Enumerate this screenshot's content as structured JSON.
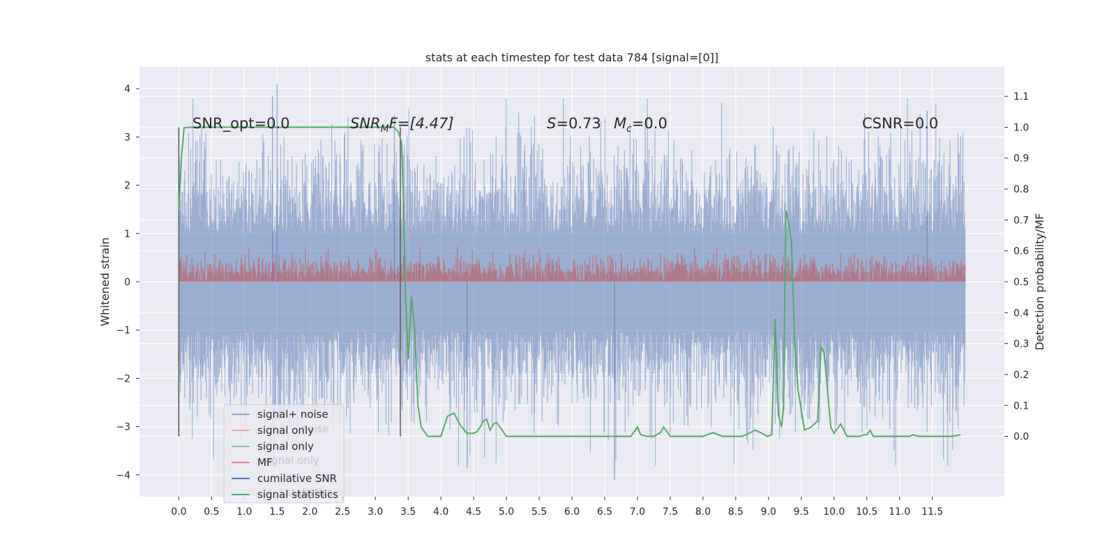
{
  "chart_data": {
    "type": "line",
    "title": "stats at each timestep for test data 784 [signal=[0]]",
    "ylabel": "Whitened strain",
    "y2label": "Detection probability/MF",
    "xlim": [
      -0.6,
      12.6
    ],
    "ylim": [
      -4.45,
      4.45
    ],
    "y2lim": [
      -0.195,
      1.195
    ],
    "x_ticks": [
      "0.0",
      "0.5",
      "1.0",
      "1.5",
      "2.0",
      "2.5",
      "3.0",
      "3.5",
      "4.0",
      "4.5",
      "5.0",
      "5.5",
      "6.0",
      "6.5",
      "7.0",
      "7.5",
      "8.0",
      "8.5",
      "9.0",
      "9.5",
      "10.0",
      "10.5",
      "11.0",
      "11.5"
    ],
    "y_ticks": [
      "4",
      "3",
      "2",
      "1",
      "0",
      "−1",
      "−2",
      "−3",
      "−4"
    ],
    "y2_ticks": [
      "1.1",
      "1.0",
      "0.9",
      "0.8",
      "0.7",
      "0.6",
      "0.5",
      "0.4",
      "0.3",
      "0.2",
      "0.1",
      "0.0"
    ],
    "annotations": {
      "snr_opt": "SNR_opt=0.0",
      "snr_mf_sym": "SNR",
      "snr_mf_sub": "M",
      "snr_mf_rest": "F=[4.47]",
      "s_sym": "S",
      "s_val": "=0.73",
      "mc_sym": "M",
      "mc_sub": "c",
      "mc_val": "=0.0",
      "csnr": "CSNR=0.0"
    },
    "legend": [
      "signal+ noise",
      "signal only",
      "signal only",
      "MF",
      "cumilative SNR",
      "signal statistics"
    ],
    "legend_ghost": [
      "noise",
      "signal only",
      "statistics"
    ],
    "legend_placement": "lower-left",
    "colors": {
      "signal_noise": "#4c72b0",
      "signal_only_1": "#dd8452",
      "signal_only_2": "#55a868",
      "mf": "#c44e52",
      "cumulative_snr": "#4c72b0",
      "statistics": "#55a868",
      "plot_bg": "#eaeaf2",
      "grid": "#ffffff"
    },
    "vertical_markers_x": [
      0.0,
      3.38
    ],
    "series": [
      {
        "name": "signal+ noise",
        "axis": "left",
        "x_range": [
          0.0,
          12.0
        ],
        "envelope_typical": [
          -2.0,
          2.0
        ],
        "envelope_extreme": [
          -4.1,
          4.1
        ],
        "notable_peaks": [
          [
            1.5,
            4.1
          ],
          [
            1.43,
            3.85
          ],
          [
            3.29,
            3.45
          ],
          [
            6.65,
            -4.1
          ],
          [
            4.4,
            -3.85
          ],
          [
            11.42,
            3.55
          ]
        ]
      },
      {
        "name": "MF",
        "axis": "left",
        "x_range": [
          0.0,
          12.0
        ],
        "envelope_typical": [
          0.0,
          0.6
        ],
        "envelope_extreme": [
          0.0,
          1.0
        ]
      },
      {
        "name": "signal statistics",
        "axis": "right",
        "x": [
          0.0,
          0.04,
          0.08,
          0.2,
          0.5,
          1.0,
          2.0,
          3.0,
          3.28,
          3.35,
          3.4,
          3.43,
          3.46,
          3.5,
          3.55,
          3.6,
          3.65,
          3.7,
          3.8,
          3.9,
          4.0,
          4.1,
          4.2,
          4.3,
          4.4,
          4.5,
          4.55,
          4.6,
          4.65,
          4.7,
          4.75,
          4.8,
          4.85,
          5.0,
          6.0,
          6.9,
          7.0,
          7.05,
          7.15,
          7.25,
          7.35,
          7.4,
          7.5,
          8.0,
          8.15,
          8.3,
          8.6,
          8.8,
          8.9,
          8.98,
          9.05,
          9.1,
          9.15,
          9.2,
          9.23,
          9.25,
          9.27,
          9.3,
          9.35,
          9.4,
          9.45,
          9.55,
          9.6,
          9.65,
          9.7,
          9.75,
          9.8,
          9.85,
          9.9,
          9.95,
          10.0,
          10.1,
          10.2,
          10.3,
          10.4,
          10.45,
          10.5,
          10.55,
          10.6,
          11.0,
          11.15,
          11.2,
          11.3,
          11.5,
          11.8,
          11.93
        ],
        "values": [
          0.73,
          0.9,
          0.998,
          1.0,
          1.0,
          1.0,
          1.0,
          1.0,
          1.0,
          0.985,
          0.95,
          0.75,
          0.45,
          0.25,
          0.45,
          0.35,
          0.1,
          0.03,
          0.0,
          0.0,
          0.0,
          0.065,
          0.075,
          0.035,
          0.01,
          0.01,
          0.015,
          0.03,
          0.05,
          0.055,
          0.02,
          0.04,
          0.045,
          0.0,
          0.0,
          0.0,
          0.03,
          0.005,
          0.0,
          0.0,
          0.012,
          0.03,
          0.0,
          0.0,
          0.012,
          0.0,
          0.0,
          0.02,
          0.01,
          0.0,
          0.005,
          0.38,
          0.07,
          0.03,
          0.1,
          0.5,
          0.73,
          0.7,
          0.63,
          0.3,
          0.15,
          0.02,
          0.025,
          0.03,
          0.04,
          0.05,
          0.29,
          0.27,
          0.15,
          0.03,
          0.01,
          0.04,
          0.0,
          0.0,
          0.0,
          0.005,
          0.005,
          0.02,
          0.0,
          0.0,
          0.0,
          0.005,
          0.0,
          0.0,
          0.0,
          0.005
        ]
      }
    ]
  }
}
